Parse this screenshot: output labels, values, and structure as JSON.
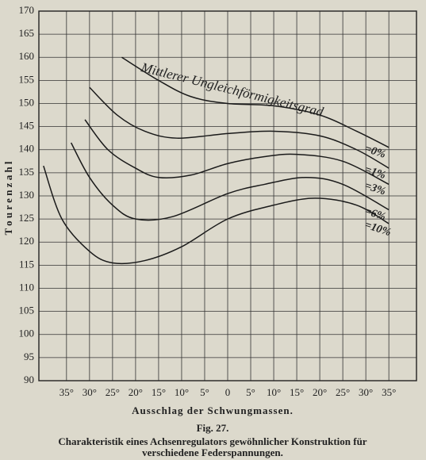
{
  "chart_data": {
    "type": "line",
    "title": "Fig. 27.",
    "caption": [
      "Charakteristik eines Achsenregulators gewöhnlicher Konstruktion für",
      "verschiedene Federspannungen."
    ],
    "ylabel": "T o u r e n z a h l",
    "xlabel": "Ausschlag der Schwungmassen.",
    "annotation": "Mittlerer Ungleichförmigkeitsgrad",
    "xlim": [
      -41,
      41
    ],
    "ylim": [
      90,
      170
    ],
    "xticks": [
      {
        "value": -35,
        "label": "35°"
      },
      {
        "value": -30,
        "label": "30°"
      },
      {
        "value": -25,
        "label": "25°"
      },
      {
        "value": -20,
        "label": "20°"
      },
      {
        "value": -15,
        "label": "15°"
      },
      {
        "value": -10,
        "label": "10°"
      },
      {
        "value": -5,
        "label": "5°"
      },
      0,
      {
        "value": 5,
        "label": "5°"
      },
      {
        "value": 10,
        "label": "10°"
      },
      {
        "value": 15,
        "label": "15°"
      },
      {
        "value": 20,
        "label": "20°"
      },
      {
        "value": 25,
        "label": "25°"
      },
      {
        "value": 30,
        "label": "30°"
      },
      {
        "value": 35,
        "label": "35°"
      }
    ],
    "yticks": [
      90,
      95,
      100,
      105,
      110,
      115,
      120,
      125,
      130,
      135,
      140,
      145,
      150,
      155,
      160,
      165,
      170
    ],
    "grid": true,
    "series": [
      {
        "name": "=0%",
        "color": "#1a1a1a",
        "x": [
          -23,
          -15,
          -8,
          0,
          10,
          20,
          28,
          35
        ],
        "values": [
          160,
          155,
          151.5,
          150,
          149.5,
          147.5,
          144,
          140.5
        ]
      },
      {
        "name": "=1%",
        "color": "#1a1a1a",
        "x": [
          -30,
          -24,
          -18,
          -11,
          0,
          10,
          20,
          28,
          35
        ],
        "values": [
          153.5,
          147.5,
          144,
          142.5,
          143.5,
          144,
          143,
          140,
          136
        ]
      },
      {
        "name": "=3%",
        "color": "#1a1a1a",
        "x": [
          -31,
          -26,
          -20,
          -15,
          -8,
          0,
          8,
          15,
          25,
          35
        ],
        "values": [
          146.5,
          140,
          136,
          134,
          134.5,
          137,
          138.5,
          139,
          137.5,
          132.5
        ]
      },
      {
        "name": "=6%",
        "color": "#1a1a1a",
        "x": [
          -34,
          -30,
          -25,
          -20,
          -12,
          0,
          8,
          17,
          25,
          35
        ],
        "values": [
          141.5,
          134,
          128,
          125,
          125.5,
          130.5,
          132.5,
          134,
          132.5,
          127
        ]
      },
      {
        "name": "=10%",
        "color": "#1a1a1a",
        "x": [
          -40,
          -36,
          -30,
          -25,
          -18,
          -10,
          0,
          10,
          19,
          28,
          35
        ],
        "values": [
          136.5,
          125,
          118,
          115.5,
          116,
          119,
          125,
          128,
          129.5,
          128,
          124
        ]
      }
    ]
  }
}
